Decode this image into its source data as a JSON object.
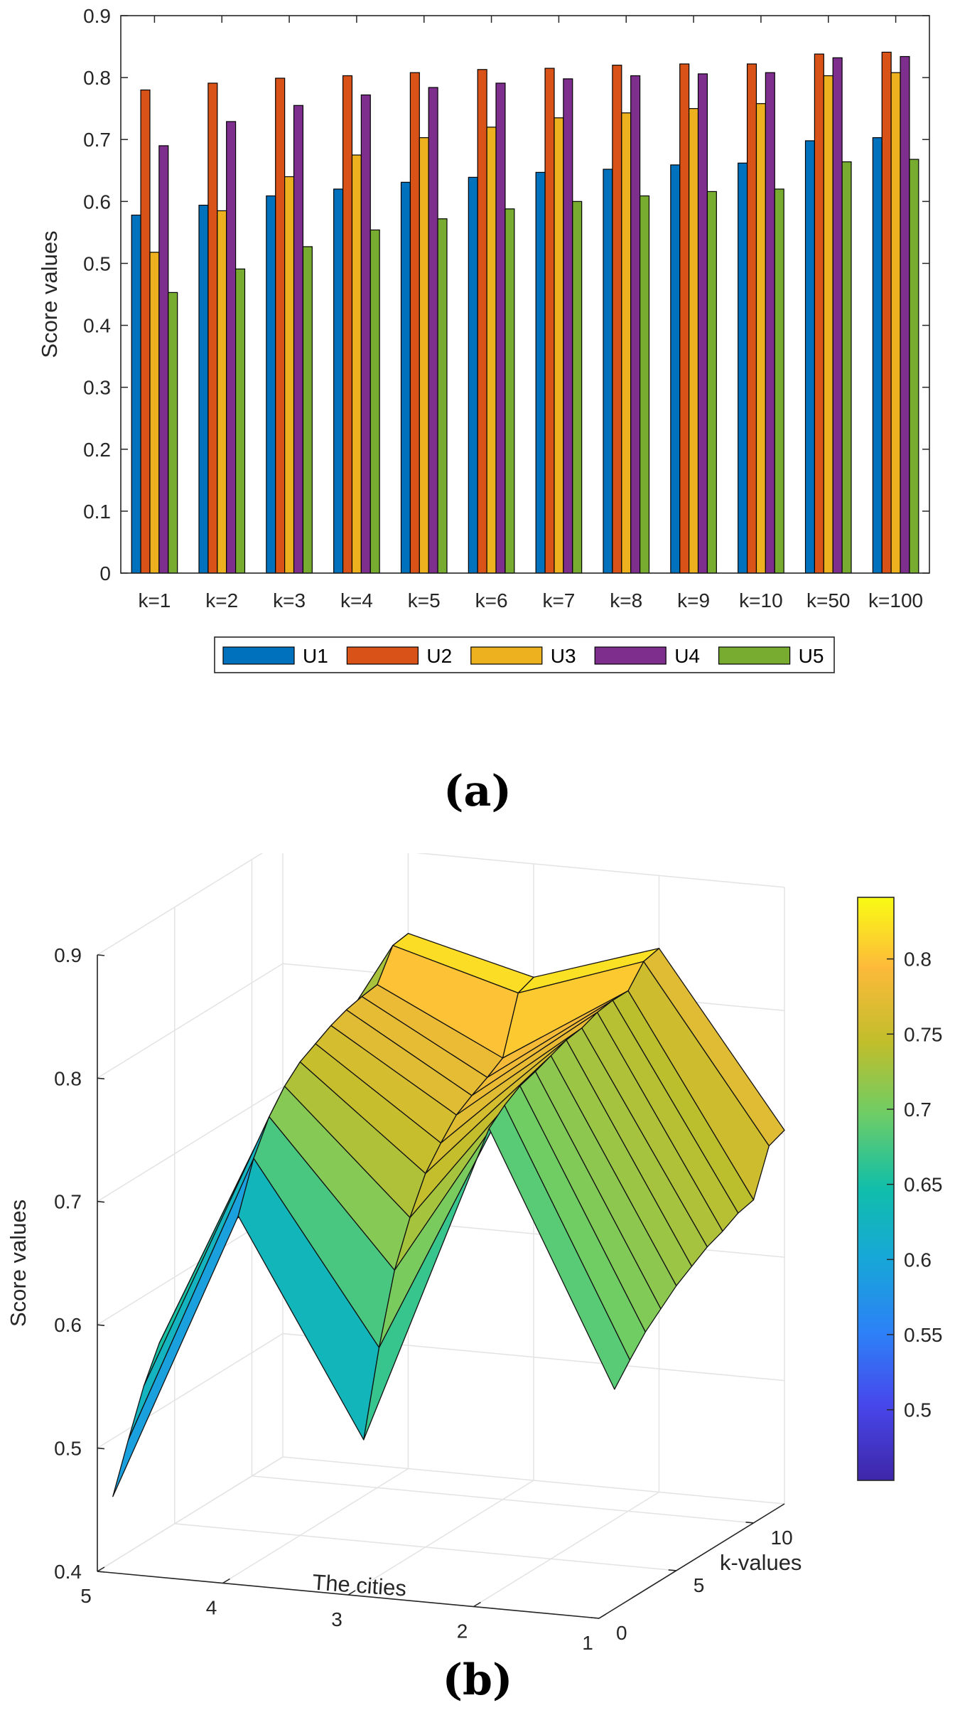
{
  "captions": {
    "a": "(a)",
    "b": "(b)"
  },
  "colors": {
    "U1": "#0072BD",
    "U2": "#D95319",
    "U3": "#EDB120",
    "U4": "#7E2F8E",
    "U5": "#77AC30"
  },
  "chart_data": [
    {
      "type": "bar",
      "title": "",
      "xlabel": "",
      "ylabel": "Score values",
      "ylim": [
        0,
        0.9
      ],
      "yticks": [
        "0",
        "0.1",
        "0.2",
        "0.3",
        "0.4",
        "0.5",
        "0.6",
        "0.7",
        "0.8",
        "0.9"
      ],
      "categories": [
        "k=1",
        "k=2",
        "k=3",
        "k=4",
        "k=5",
        "k=6",
        "k=7",
        "k=8",
        "k=9",
        "k=10",
        "k=50",
        "k=100"
      ],
      "legend_position": "bottom-outside",
      "series": [
        {
          "name": "U1",
          "values": [
            0.578,
            0.594,
            0.609,
            0.62,
            0.631,
            0.639,
            0.647,
            0.652,
            0.659,
            0.662,
            0.698,
            0.703
          ]
        },
        {
          "name": "U2",
          "values": [
            0.78,
            0.791,
            0.799,
            0.803,
            0.808,
            0.813,
            0.815,
            0.82,
            0.822,
            0.822,
            0.838,
            0.841
          ]
        },
        {
          "name": "U3",
          "values": [
            0.518,
            0.585,
            0.64,
            0.675,
            0.703,
            0.72,
            0.735,
            0.743,
            0.75,
            0.758,
            0.803,
            0.808
          ]
        },
        {
          "name": "U4",
          "values": [
            0.69,
            0.729,
            0.755,
            0.772,
            0.784,
            0.791,
            0.798,
            0.803,
            0.806,
            0.808,
            0.832,
            0.834
          ]
        },
        {
          "name": "U5",
          "values": [
            0.453,
            0.491,
            0.527,
            0.554,
            0.572,
            0.588,
            0.6,
            0.609,
            0.616,
            0.62,
            0.664,
            0.668
          ]
        }
      ]
    },
    {
      "type": "surface",
      "title": "",
      "xlabel": "The cities",
      "ylabel": "k-values",
      "zlabel": "Score values",
      "zlim": [
        0.4,
        0.9
      ],
      "xticks": [
        "5",
        "4",
        "3",
        "2",
        "1"
      ],
      "yticks": [
        "0",
        "5",
        "10"
      ],
      "zticks": [
        "0.4",
        "0.5",
        "0.6",
        "0.7",
        "0.8",
        "0.9"
      ],
      "colorbar_ticks": [
        "0.5",
        "0.55",
        "0.6",
        "0.65",
        "0.7",
        "0.75",
        "0.8"
      ],
      "colorbar_range": [
        0.453,
        0.841
      ],
      "cities": [
        1,
        2,
        3,
        4,
        5
      ],
      "k_index": [
        1,
        2,
        3,
        4,
        5,
        6,
        7,
        8,
        9,
        10,
        11,
        12
      ],
      "note": "surface values: city j at k-index i equals series Uj value i of chart (a)"
    }
  ]
}
